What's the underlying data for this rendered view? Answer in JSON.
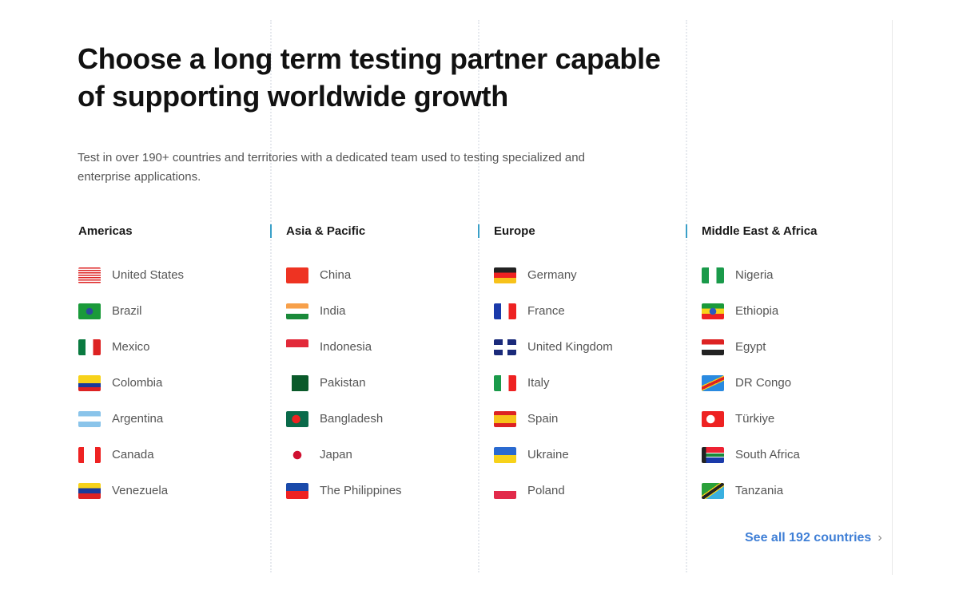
{
  "title": "Choose a long term testing partner capable of supporting worldwide growth",
  "subtitle": "Test in over 190+ countries and territories with a dedicated team used to testing specialized and enterprise applications.",
  "accent": "#3aa0c8",
  "link_color": "#3f7fd6",
  "regions": [
    {
      "name": "Americas",
      "countries": [
        "United States",
        "Brazil",
        "Mexico",
        "Colombia",
        "Argentina",
        "Canada",
        "Venezuela"
      ]
    },
    {
      "name": "Asia & Pacific",
      "countries": [
        "China",
        "India",
        "Indonesia",
        "Pakistan",
        "Bangladesh",
        "Japan",
        "The Philippines"
      ]
    },
    {
      "name": "Europe",
      "countries": [
        "Germany",
        "France",
        "United Kingdom",
        "Italy",
        "Spain",
        "Ukraine",
        "Poland"
      ]
    },
    {
      "name": "Middle East & Africa",
      "countries": [
        "Nigeria",
        "Ethiopia",
        "Egypt",
        "DR Congo",
        "Türkiye",
        "South Africa",
        "Tanzania"
      ]
    }
  ],
  "see_all": {
    "label": "See all 192 countries",
    "icon": "chevron-right-icon"
  }
}
